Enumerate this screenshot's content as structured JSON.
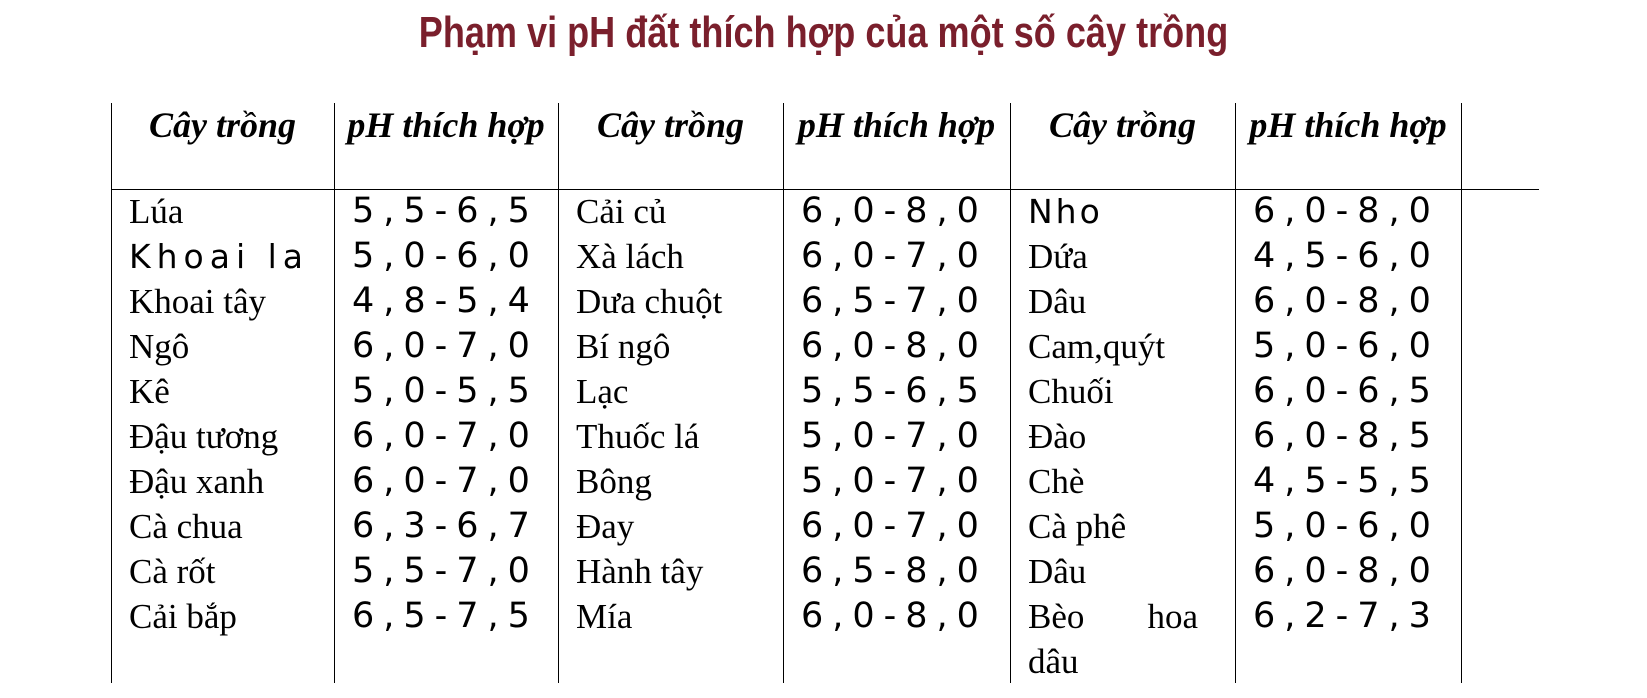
{
  "title": "Phạm vi pH đất thích hợp của một số cây trồng",
  "headers": [
    "Cây trồng",
    "pH thích hợp",
    "Cây trồng",
    "pH thích hợp",
    "Cây trồng",
    "pH thích hợp"
  ],
  "groups": [
    {
      "crops": [
        "Lúa",
        "Khoai la",
        "Khoai tây",
        "Ngô",
        "Kê",
        "Đậu tương",
        "Đậu xanh",
        "Cà chua",
        "Cà rốt",
        "Cải bắp"
      ],
      "ph": [
        "5,5-6,5",
        "5,0-6,0",
        "4,8-5,4",
        "6,0-7,0",
        "5,0-5,5",
        "6,0-7,0",
        "6,0-7,0",
        "6,3-6,7",
        "5,5-7,0",
        "6,5-7,5"
      ]
    },
    {
      "crops": [
        "Cải củ",
        "Xà lách",
        "Dưa chuột",
        "Bí ngô",
        "Lạc",
        "Thuốc lá",
        "Bông",
        "Đay",
        "Hành tây",
        "Mía"
      ],
      "ph": [
        "6,0-8,0",
        "6,0-7,0",
        "6,5-7,0",
        "6,0-8,0",
        "5,5-6,5",
        "5,0-7,0",
        "5,0-7,0",
        "6,0-7,0",
        "6,5-8,0",
        "6,0-8,0"
      ]
    },
    {
      "crops": [
        "Nho",
        "Dứa",
        "Dâu",
        "Cam,quýt",
        "Chuối",
        "Đào",
        "Chè",
        "Cà phê",
        "Dâu",
        "Bèo hoa dâu"
      ],
      "ph": [
        "6,0-8,0",
        "4,5-6,0",
        "6,0-8,0",
        "5,0-6,0",
        "6,0-6,5",
        "6,0-8,5",
        "4,5-5,5",
        "5,0-6,0",
        "6,0-8,0",
        "6,2-7,3"
      ]
    }
  ],
  "colors": {
    "title": "#7a1f2c",
    "text": "#000000",
    "grid": "#000000"
  }
}
